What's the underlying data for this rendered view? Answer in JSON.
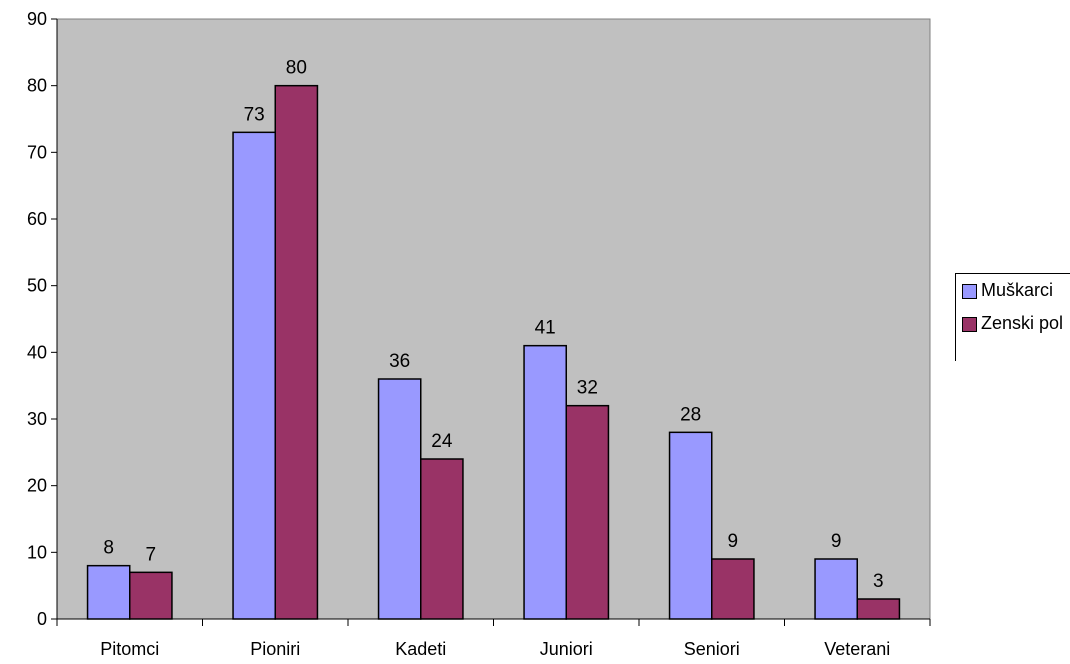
{
  "chart_data": {
    "type": "bar",
    "categories": [
      "Pitomci",
      "Pioniri",
      "Kadeti",
      "Juniori",
      "Seniori",
      "Veterani"
    ],
    "series": [
      {
        "name": "Muškarci",
        "values": [
          8,
          73,
          36,
          41,
          28,
          9
        ],
        "color": "#9999ff"
      },
      {
        "name": "Zenski pol",
        "values": [
          7,
          80,
          24,
          32,
          9,
          3
        ],
        "color": "#993366"
      }
    ],
    "yticks": [
      "0",
      "10",
      "20",
      "30",
      "40",
      "50",
      "60",
      "70",
      "80",
      "90"
    ],
    "ylim": [
      0,
      90
    ],
    "grid": false,
    "plot_background": "#c0c0c0",
    "data_labels": true,
    "legend_position": "right"
  }
}
